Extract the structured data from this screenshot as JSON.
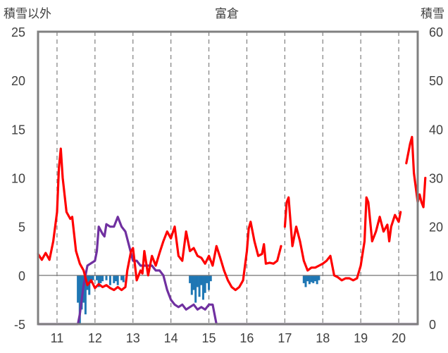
{
  "chart_data": {
    "type": "line",
    "title": "富倉",
    "left_axis_label": "積雪以外",
    "right_axis_label": "積雪",
    "x_range": [
      10.5,
      20.5
    ],
    "x_ticks": [
      "11",
      "12",
      "13",
      "14",
      "15",
      "16",
      "17",
      "18",
      "19",
      "20"
    ],
    "y_left_range": [
      -5,
      25
    ],
    "y_left_ticks": [
      "-5",
      "0",
      "5",
      "10",
      "15",
      "20",
      "25"
    ],
    "y_right_range": [
      0,
      60
    ],
    "y_right_ticks": [
      "0",
      "10",
      "20",
      "30",
      "40",
      "50",
      "60"
    ],
    "grid": "dashed vertical lines at each year",
    "colors": {
      "red_series": "#ff0000",
      "purple_series": "#7030a0",
      "blue_bars": "#1f77b4"
    },
    "red_series": {
      "axis": "left",
      "segments": [
        [
          [
            10.5,
            2.2
          ],
          [
            10.6,
            1.6
          ],
          [
            10.7,
            2.3
          ],
          [
            10.8,
            1.6
          ],
          [
            10.9,
            3.5
          ],
          [
            11.0,
            6.5
          ],
          [
            11.05,
            11.0
          ],
          [
            11.1,
            13.0
          ],
          [
            11.15,
            10.0
          ],
          [
            11.25,
            6.5
          ],
          [
            11.35,
            5.8
          ],
          [
            11.4,
            6.0
          ],
          [
            11.5,
            2.5
          ],
          [
            11.6,
            1.2
          ],
          [
            11.7,
            0.5
          ],
          [
            11.8,
            -1.0
          ],
          [
            11.9,
            -0.5
          ],
          [
            12.0,
            -1.3
          ],
          [
            12.1,
            -0.9
          ],
          [
            12.2,
            -1.2
          ],
          [
            12.3,
            -1.0
          ],
          [
            12.4,
            -1.3
          ],
          [
            12.5,
            -1.5
          ],
          [
            12.6,
            -1.2
          ],
          [
            12.7,
            -1.5
          ],
          [
            12.8,
            -1.2
          ],
          [
            12.85,
            0.5
          ],
          [
            12.95,
            2.5
          ],
          [
            13.0,
            2.8
          ],
          [
            13.1,
            -0.5
          ],
          [
            13.2,
            0.5
          ],
          [
            13.25,
            0.2
          ],
          [
            13.3,
            2.5
          ],
          [
            13.4,
            0.0
          ],
          [
            13.5,
            2.0
          ],
          [
            13.6,
            1.0
          ],
          [
            13.7,
            2.3
          ],
          [
            13.8,
            3.5
          ],
          [
            13.9,
            4.5
          ],
          [
            14.0,
            3.8
          ],
          [
            14.1,
            5.0
          ],
          [
            14.2,
            2.0
          ],
          [
            14.3,
            1.5
          ],
          [
            14.4,
            4.5
          ],
          [
            14.5,
            2.5
          ],
          [
            14.6,
            2.8
          ],
          [
            14.7,
            2.0
          ],
          [
            14.8,
            1.8
          ],
          [
            14.9,
            1.2
          ],
          [
            15.0,
            2.0
          ],
          [
            15.1,
            1.0
          ],
          [
            15.2,
            3.0
          ],
          [
            15.3,
            1.8
          ],
          [
            15.4,
            0.5
          ],
          [
            15.5,
            -0.5
          ],
          [
            15.6,
            -1.2
          ],
          [
            15.7,
            -1.5
          ],
          [
            15.8,
            -1.2
          ],
          [
            15.9,
            -0.5
          ],
          [
            16.0,
            2.5
          ],
          [
            16.05,
            4.8
          ],
          [
            16.1,
            5.5
          ],
          [
            16.2,
            3.5
          ],
          [
            16.3,
            2.0
          ],
          [
            16.4,
            2.2
          ],
          [
            16.45,
            3.2
          ],
          [
            16.5,
            1.2
          ],
          [
            16.6,
            1.3
          ],
          [
            16.7,
            1.2
          ],
          [
            16.8,
            1.5
          ],
          [
            16.9,
            3.0
          ]
        ],
        [
          [
            17.0,
            5.0
          ],
          [
            17.05,
            7.5
          ],
          [
            17.1,
            8.0
          ],
          [
            17.2,
            3.0
          ],
          [
            17.3,
            5.0
          ],
          [
            17.4,
            3.5
          ],
          [
            17.5,
            1.5
          ],
          [
            17.6,
            0.5
          ],
          [
            17.7,
            0.8
          ],
          [
            17.8,
            0.8
          ],
          [
            17.9,
            1.0
          ],
          [
            18.0,
            1.2
          ],
          [
            18.1,
            1.5
          ],
          [
            18.2,
            2.0
          ],
          [
            18.3,
            0.0
          ],
          [
            18.4,
            -0.2
          ],
          [
            18.5,
            -0.5
          ],
          [
            18.6,
            -0.3
          ],
          [
            18.7,
            -0.3
          ],
          [
            18.8,
            -0.5
          ],
          [
            18.9,
            -0.3
          ],
          [
            19.0,
            1.0
          ],
          [
            19.1,
            3.5
          ],
          [
            19.15,
            8.0
          ],
          [
            19.2,
            7.5
          ],
          [
            19.3,
            3.5
          ],
          [
            19.4,
            4.5
          ],
          [
            19.5,
            6.0
          ],
          [
            19.6,
            4.5
          ],
          [
            19.7,
            5.2
          ],
          [
            19.75,
            3.5
          ],
          [
            19.8,
            5.0
          ],
          [
            19.9,
            6.2
          ],
          [
            20.0,
            5.5
          ],
          [
            20.05,
            6.5
          ]
        ],
        [
          [
            20.2,
            11.5
          ],
          [
            20.3,
            13.5
          ],
          [
            20.35,
            14.2
          ],
          [
            20.4,
            10.5
          ],
          [
            20.5,
            7.5
          ],
          [
            20.55,
            8.3
          ],
          [
            20.6,
            7.5
          ],
          [
            20.65,
            7.0
          ],
          [
            20.7,
            10.0
          ]
        ]
      ]
    },
    "purple_series": {
      "axis": "right",
      "points": [
        [
          10.5,
          0
        ],
        [
          11.55,
          0
        ],
        [
          11.6,
          2
        ],
        [
          11.7,
          8
        ],
        [
          11.8,
          12
        ],
        [
          11.9,
          12.5
        ],
        [
          12.0,
          13
        ],
        [
          12.05,
          15
        ],
        [
          12.1,
          20
        ],
        [
          12.2,
          18.5
        ],
        [
          12.25,
          18
        ],
        [
          12.3,
          20.5
        ],
        [
          12.4,
          20
        ],
        [
          12.5,
          20
        ],
        [
          12.55,
          21
        ],
        [
          12.6,
          22
        ],
        [
          12.7,
          20
        ],
        [
          12.8,
          19
        ],
        [
          12.9,
          16
        ],
        [
          13.0,
          13
        ],
        [
          13.1,
          13
        ],
        [
          13.2,
          12
        ],
        [
          13.3,
          12
        ],
        [
          13.5,
          12
        ],
        [
          13.6,
          11
        ],
        [
          13.7,
          11
        ],
        [
          13.8,
          10
        ],
        [
          13.9,
          7
        ],
        [
          14.0,
          5
        ],
        [
          14.1,
          4
        ],
        [
          14.2,
          3.5
        ],
        [
          14.3,
          4
        ],
        [
          14.4,
          3
        ],
        [
          14.5,
          3.5
        ],
        [
          14.6,
          4
        ],
        [
          14.7,
          3
        ],
        [
          14.8,
          3.5
        ],
        [
          14.9,
          3
        ],
        [
          15.0,
          4
        ],
        [
          15.1,
          4
        ],
        [
          15.2,
          0
        ],
        [
          20.5,
          0
        ]
      ]
    },
    "blue_bars": {
      "axis": "left",
      "bars": [
        [
          11.55,
          -2.8
        ],
        [
          11.6,
          -4.9
        ],
        [
          11.65,
          -3.5
        ],
        [
          11.7,
          -2.8
        ],
        [
          11.75,
          -4.0
        ],
        [
          11.8,
          -1.5
        ],
        [
          11.85,
          -2.0
        ],
        [
          11.9,
          -0.8
        ],
        [
          11.95,
          -0.5
        ],
        [
          12.05,
          -0.5
        ],
        [
          12.1,
          -1.2
        ],
        [
          12.15,
          -0.8
        ],
        [
          12.2,
          -0.6
        ],
        [
          12.3,
          -0.5
        ],
        [
          12.4,
          -1.0
        ],
        [
          12.5,
          -0.8
        ],
        [
          12.55,
          -0.6
        ],
        [
          12.6,
          -1.0
        ],
        [
          12.7,
          -0.5
        ],
        [
          12.75,
          -0.7
        ],
        [
          14.5,
          -0.8
        ],
        [
          14.55,
          -2.0
        ],
        [
          14.6,
          -1.5
        ],
        [
          14.65,
          -2.8
        ],
        [
          14.7,
          -1.2
        ],
        [
          14.75,
          -2.2
        ],
        [
          14.8,
          -1.0
        ],
        [
          14.85,
          -2.5
        ],
        [
          14.9,
          -1.8
        ],
        [
          14.95,
          -0.8
        ],
        [
          15.0,
          -1.5
        ],
        [
          15.05,
          -0.6
        ],
        [
          17.5,
          -0.8
        ],
        [
          17.55,
          -1.2
        ],
        [
          17.6,
          -0.6
        ],
        [
          17.65,
          -0.9
        ],
        [
          17.7,
          -0.7
        ],
        [
          17.75,
          -0.8
        ],
        [
          17.8,
          -0.6
        ],
        [
          17.85,
          -0.9
        ],
        [
          17.9,
          -0.5
        ]
      ]
    }
  }
}
